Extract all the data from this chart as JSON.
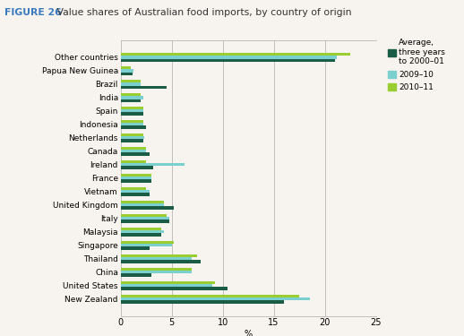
{
  "title_bold": "FIGURE 26",
  "title_rest": " Value shares of Australian food imports, by country of origin",
  "categories": [
    "New Zealand",
    "United States",
    "China",
    "Thailand",
    "Singapore",
    "Malaysia",
    "Italy",
    "United Kingdom",
    "Vietnam",
    "France",
    "Ireland",
    "Canada",
    "Netherlands",
    "Indonesia",
    "Spain",
    "India",
    "Brazil",
    "Papua New Guinea",
    "Other countries"
  ],
  "avg_2000_01": [
    16.0,
    10.5,
    3.0,
    7.8,
    2.8,
    4.0,
    4.8,
    5.2,
    2.8,
    3.0,
    3.2,
    2.8,
    2.2,
    2.5,
    2.2,
    2.0,
    4.5,
    1.2,
    21.0
  ],
  "val_2009_10": [
    18.5,
    9.0,
    7.0,
    7.0,
    5.0,
    4.2,
    4.8,
    4.2,
    2.8,
    3.0,
    6.3,
    2.5,
    2.3,
    2.2,
    2.2,
    2.2,
    2.0,
    1.3,
    21.2
  ],
  "val_2010_11": [
    17.5,
    9.2,
    7.0,
    7.5,
    5.2,
    4.0,
    4.5,
    4.2,
    2.5,
    3.0,
    2.5,
    2.5,
    2.2,
    2.2,
    2.2,
    2.0,
    2.0,
    1.0,
    22.5
  ],
  "color_avg": "#1a5c45",
  "color_2009_10": "#7acfcf",
  "color_2010_11": "#9acd32",
  "xlabel": "%",
  "xlim": [
    0,
    25
  ],
  "xticks": [
    0,
    5,
    10,
    15,
    20,
    25
  ],
  "background_color": "#f7f3ee",
  "legend_labels": [
    "Average,\nthree years\nto 2000–01",
    "2009–10",
    "2010–11"
  ]
}
